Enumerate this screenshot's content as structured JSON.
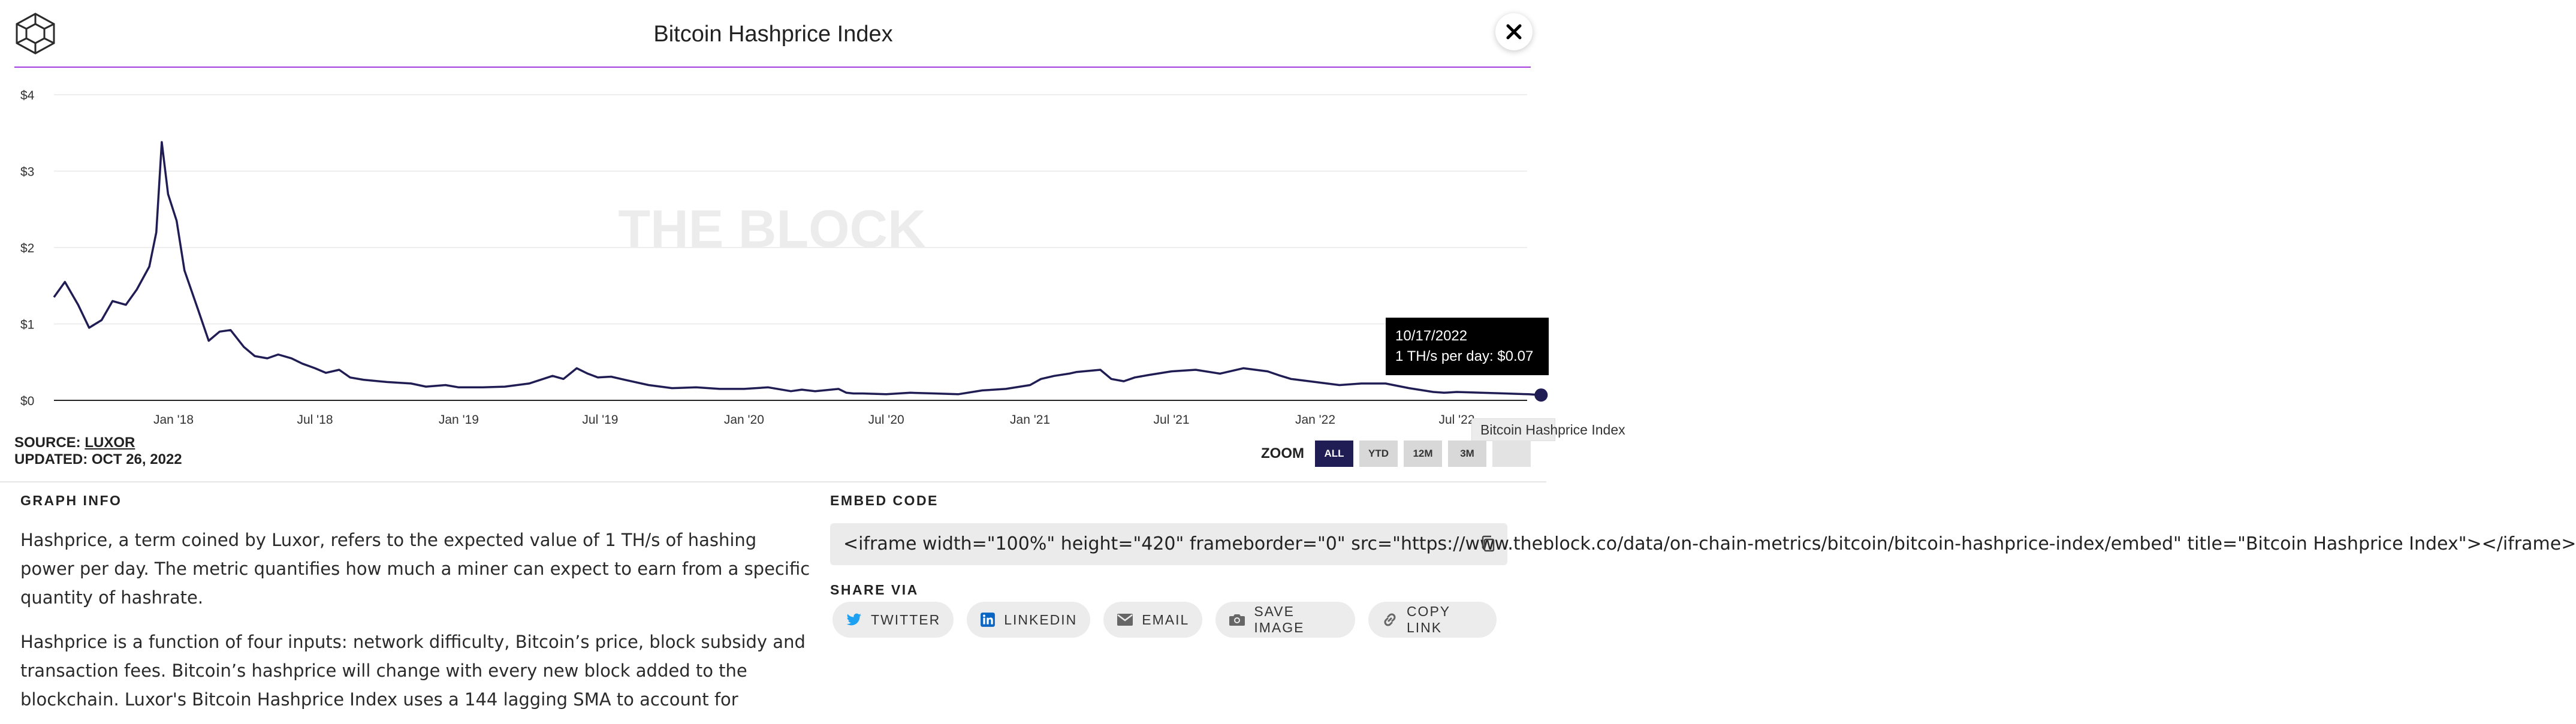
{
  "header": {
    "title": "Bitcoin Hashprice Index"
  },
  "chart_data": {
    "type": "line",
    "title": "Bitcoin Hashprice Index",
    "watermark": "THE BLOCK",
    "ylim": [
      0,
      4
    ],
    "yticks": [
      "$0",
      "$1",
      "$2",
      "$3",
      "$4"
    ],
    "xticks": [
      "Jan '18",
      "Jul '18",
      "Jan '19",
      "Jul '19",
      "Jan '20",
      "Jul '20",
      "Jan '21",
      "Jul '21",
      "Jan '22",
      "Jul '22"
    ],
    "grid": true,
    "line_color": "#201c54",
    "series": [
      {
        "x": [
          "2017-08-01",
          "2017-08-15",
          "2017-09-01",
          "2017-09-15",
          "2017-10-01",
          "2017-10-15",
          "2017-11-01",
          "2017-11-15",
          "2017-12-01",
          "2017-12-10",
          "2017-12-17",
          "2017-12-25",
          "2018-01-05",
          "2018-01-15",
          "2018-02-01",
          "2018-02-15",
          "2018-03-01",
          "2018-03-15",
          "2018-04-01",
          "2018-04-15",
          "2018-05-01",
          "2018-05-15",
          "2018-06-01",
          "2018-06-15",
          "2018-07-01",
          "2018-07-15",
          "2018-08-01",
          "2018-08-15",
          "2018-09-01",
          "2018-10-01",
          "2018-11-01",
          "2018-11-20",
          "2018-12-15",
          "2019-01-01",
          "2019-02-01",
          "2019-03-01",
          "2019-04-01",
          "2019-05-01",
          "2019-05-15",
          "2019-06-01",
          "2019-06-15",
          "2019-06-28",
          "2019-07-15",
          "2019-08-01",
          "2019-09-01",
          "2019-10-01",
          "2019-11-01",
          "2019-12-01",
          "2020-01-01",
          "2020-02-01",
          "2020-03-01",
          "2020-03-15",
          "2020-04-01",
          "2020-05-01",
          "2020-05-11",
          "2020-05-20",
          "2020-06-01",
          "2020-07-01",
          "2020-08-01",
          "2020-09-01",
          "2020-10-01",
          "2020-11-01",
          "2020-12-01",
          "2021-01-01",
          "2021-01-15",
          "2021-02-01",
          "2021-02-20",
          "2021-03-01",
          "2021-04-01",
          "2021-04-15",
          "2021-05-01",
          "2021-05-15",
          "2021-06-01",
          "2021-07-01",
          "2021-08-01",
          "2021-09-01",
          "2021-10-01",
          "2021-11-01",
          "2021-11-15",
          "2021-12-01",
          "2022-01-01",
          "2022-02-01",
          "2022-03-01",
          "2022-04-01",
          "2022-05-01",
          "2022-06-01",
          "2022-06-15",
          "2022-07-01",
          "2022-08-01",
          "2022-09-01",
          "2022-10-01",
          "2022-10-17"
        ],
        "y": [
          1.35,
          1.55,
          1.25,
          0.95,
          1.05,
          1.3,
          1.25,
          1.45,
          1.75,
          2.2,
          3.38,
          2.7,
          2.35,
          1.7,
          1.2,
          0.78,
          0.9,
          0.92,
          0.7,
          0.58,
          0.55,
          0.6,
          0.55,
          0.48,
          0.42,
          0.36,
          0.4,
          0.3,
          0.27,
          0.24,
          0.22,
          0.18,
          0.2,
          0.17,
          0.17,
          0.18,
          0.22,
          0.32,
          0.28,
          0.42,
          0.35,
          0.3,
          0.31,
          0.27,
          0.2,
          0.16,
          0.17,
          0.15,
          0.15,
          0.17,
          0.12,
          0.14,
          0.12,
          0.15,
          0.1,
          0.09,
          0.09,
          0.08,
          0.1,
          0.09,
          0.08,
          0.13,
          0.15,
          0.2,
          0.28,
          0.32,
          0.35,
          0.37,
          0.4,
          0.28,
          0.25,
          0.3,
          0.33,
          0.38,
          0.4,
          0.35,
          0.42,
          0.38,
          0.33,
          0.28,
          0.24,
          0.2,
          0.22,
          0.22,
          0.16,
          0.11,
          0.1,
          0.11,
          0.1,
          0.09,
          0.08,
          0.07
        ]
      }
    ],
    "tooltip": {
      "date": "10/17/2022",
      "text": "1 TH/s per day: $0.07"
    },
    "series_label": "Bitcoin Hashprice Index"
  },
  "source": {
    "label": "SOURCE:",
    "name": "LUXOR",
    "updated": "UPDATED: OCT 26, 2022"
  },
  "zoom": {
    "label": "ZOOM",
    "buttons": [
      "ALL",
      "YTD",
      "12M",
      "3M"
    ],
    "active": "ALL"
  },
  "graph_info": {
    "heading": "GRAPH INFO",
    "paragraphs": [
      "Hashprice, a term coined by Luxor, refers to the expected value of 1 TH/s of hashing power per day. The metric quantifies how much a miner can expect to earn from a specific quantity of hashrate.",
      "Hashprice is a function of four inputs: network difficulty, Bitcoin’s price, block subsidy and transaction fees. Bitcoin’s hashprice will change with every new block added to the blockchain. Luxor's Bitcoin Hashprice Index uses a 144 lagging SMA to account for"
    ]
  },
  "embed": {
    "heading": "EMBED CODE",
    "code": "<iframe width=\"100%\" height=\"420\" frameborder=\"0\" src=\"https://www.theblock.co/data/on-chain-metrics/bitcoin/bitcoin-hashprice-index/embed\" title=\"Bitcoin Hashprice Index\"></iframe>"
  },
  "share": {
    "heading": "SHARE VIA",
    "buttons": [
      {
        "label": "TWITTER",
        "icon": "twitter-icon",
        "color": "#1da1f2"
      },
      {
        "label": "LINKEDIN",
        "icon": "linkedin-icon",
        "color": "#0a66c2"
      },
      {
        "label": "EMAIL",
        "icon": "mail-icon",
        "color": "#666666"
      },
      {
        "label": "SAVE IMAGE",
        "icon": "camera-icon",
        "color": "#666666"
      },
      {
        "label": "COPY LINK",
        "icon": "link-icon",
        "color": "#666666"
      }
    ]
  },
  "colors": {
    "accent": "#a23be0",
    "line": "#201c54",
    "active_button": "#201c54"
  }
}
